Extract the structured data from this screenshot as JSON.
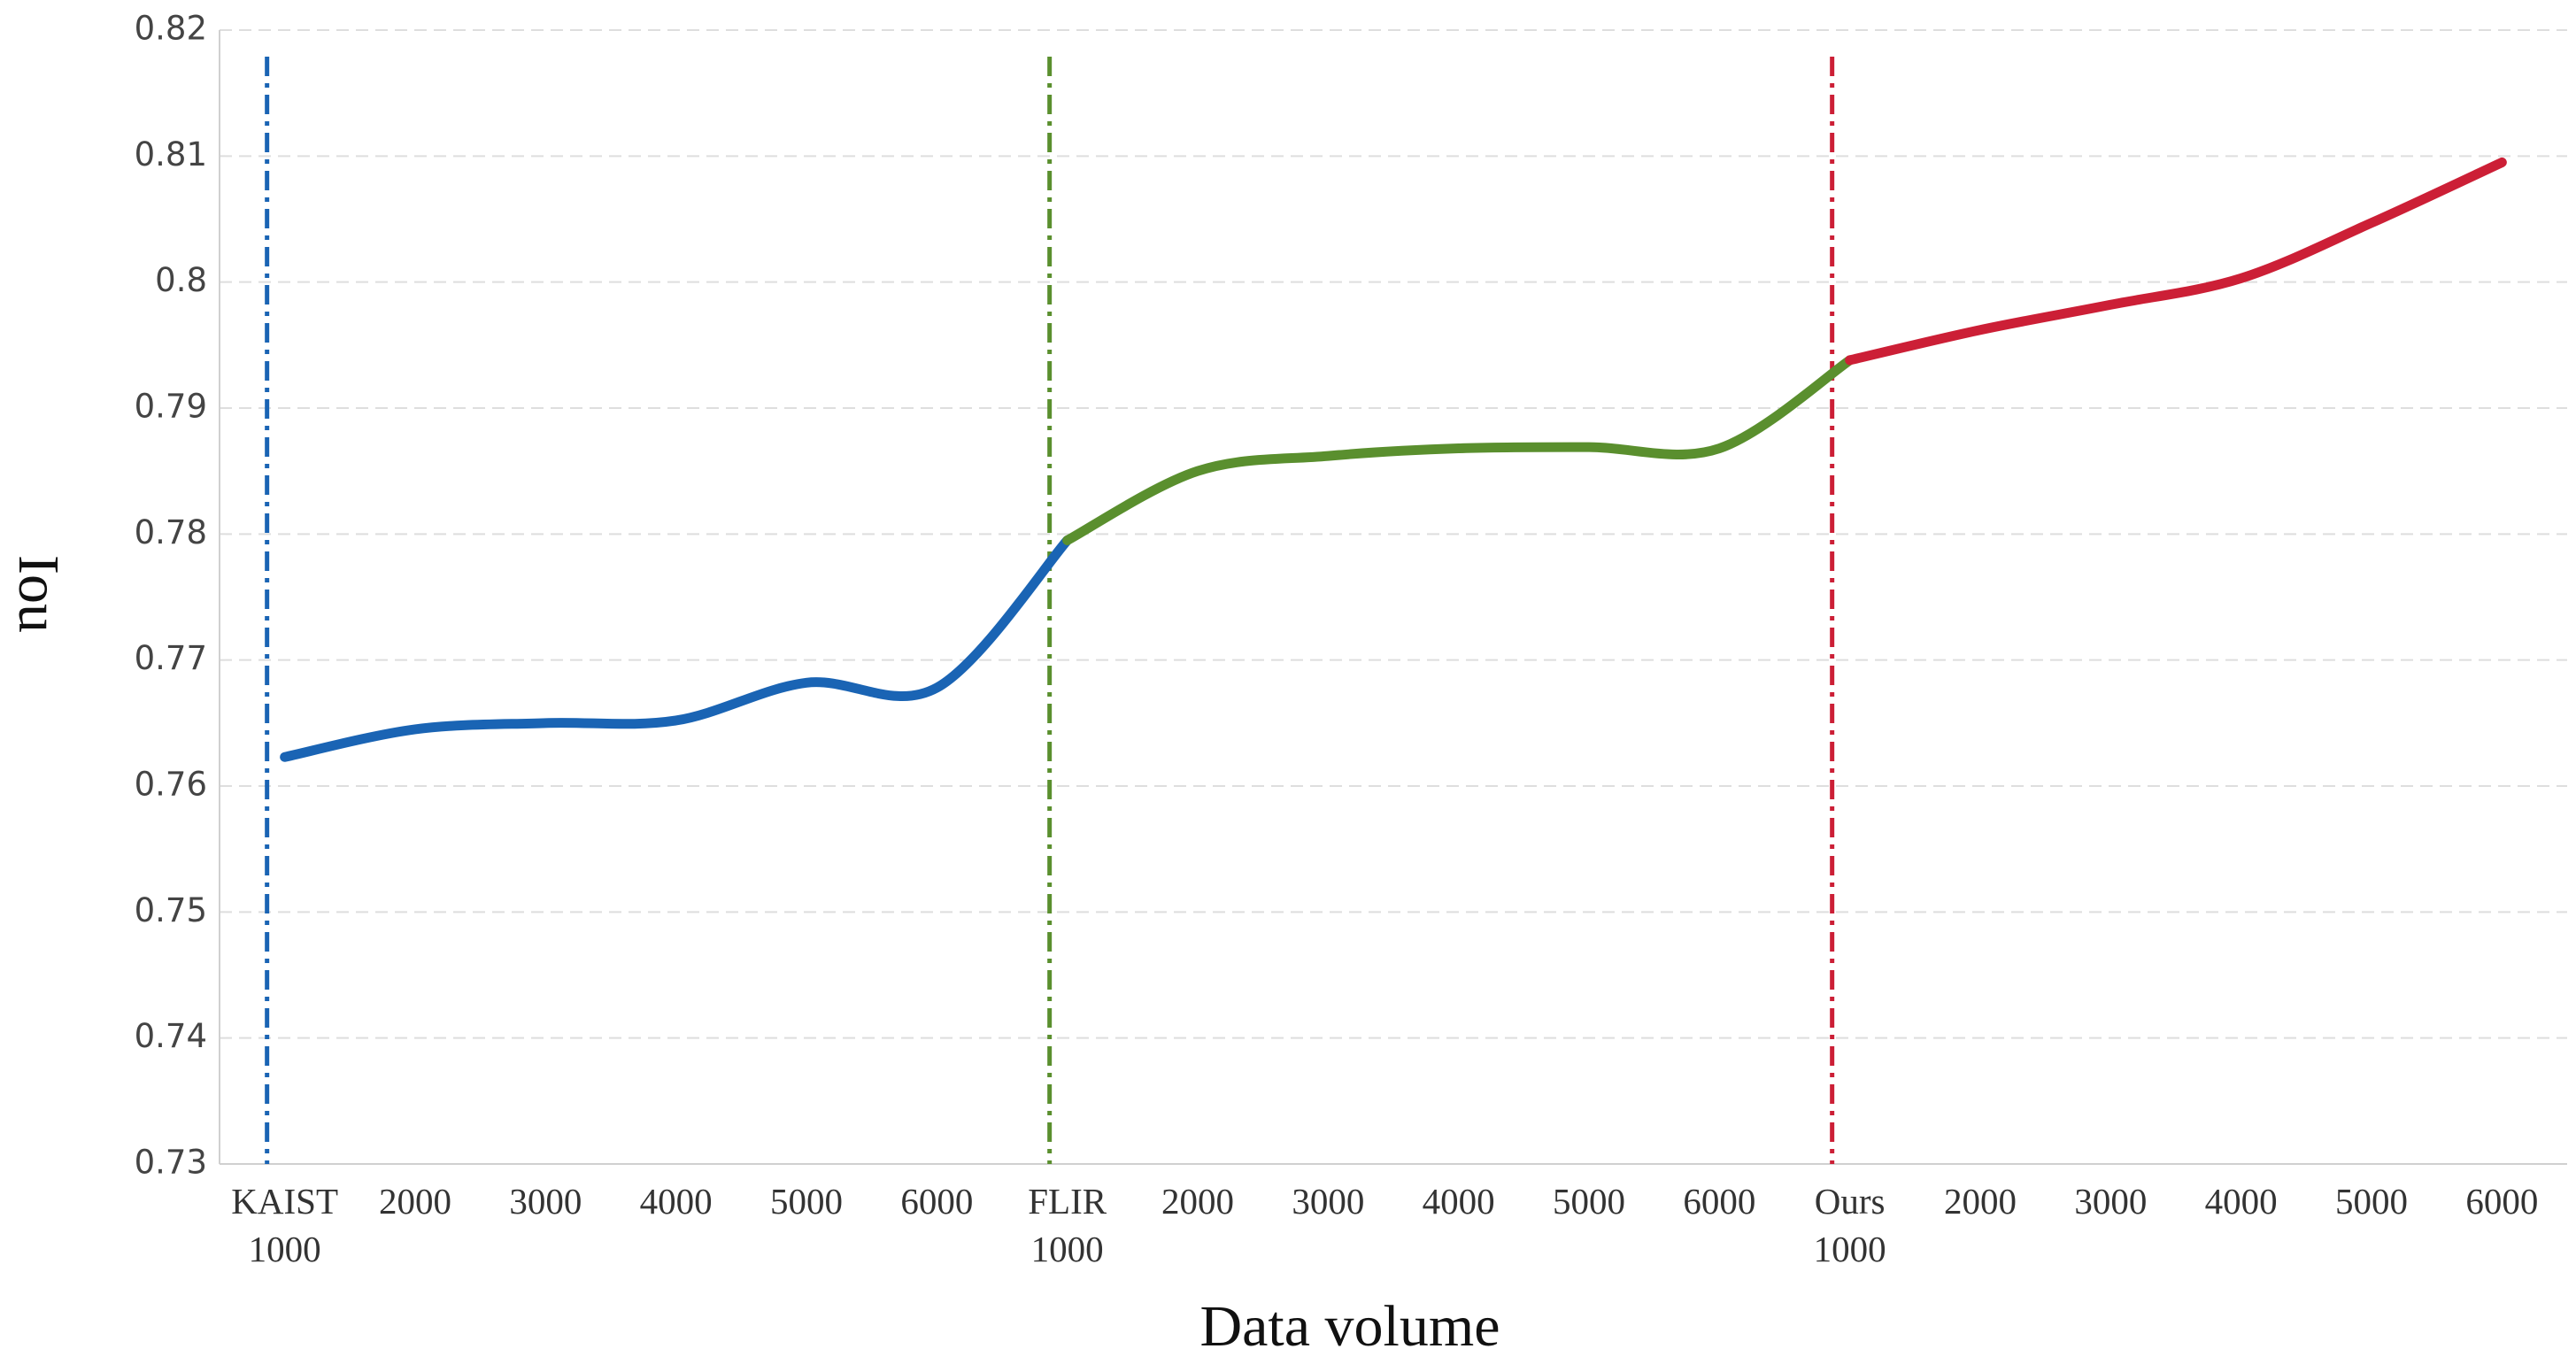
{
  "chart_data": {
    "type": "line",
    "categories": [
      "KAIST 1000",
      "2000",
      "3000",
      "4000",
      "5000",
      "6000",
      "FLIR 1000",
      "2000",
      "3000",
      "4000",
      "5000",
      "6000",
      "Ours 1000",
      "2000",
      "3000",
      "4000",
      "5000",
      "6000"
    ],
    "series": [
      {
        "color": "#1a64b4",
        "values": [
          0.7623,
          0.7645,
          0.765,
          0.7652,
          0.7682,
          0.7678,
          0.7795,
          null,
          null,
          null,
          null,
          null,
          null,
          null,
          null,
          null,
          null,
          null
        ]
      },
      {
        "color": "#5a8f2e",
        "values": [
          null,
          null,
          null,
          null,
          null,
          null,
          0.7795,
          0.785,
          0.7862,
          0.7868,
          0.7869,
          0.7868,
          0.7938,
          null,
          null,
          null,
          null,
          null
        ]
      },
      {
        "color": "#cc1f36",
        "values": [
          null,
          null,
          null,
          null,
          null,
          null,
          null,
          null,
          null,
          null,
          null,
          null,
          0.7938,
          0.7962,
          0.7982,
          0.8003,
          0.8047,
          0.8095
        ]
      }
    ],
    "xlabel": "Data volume",
    "ylabel": "Iou",
    "ylim": [
      0.73,
      0.82
    ],
    "yticks": [
      0.73,
      0.74,
      0.75,
      0.76,
      0.77,
      0.78,
      0.79,
      0.8,
      0.81,
      0.82
    ],
    "grid": true
  }
}
